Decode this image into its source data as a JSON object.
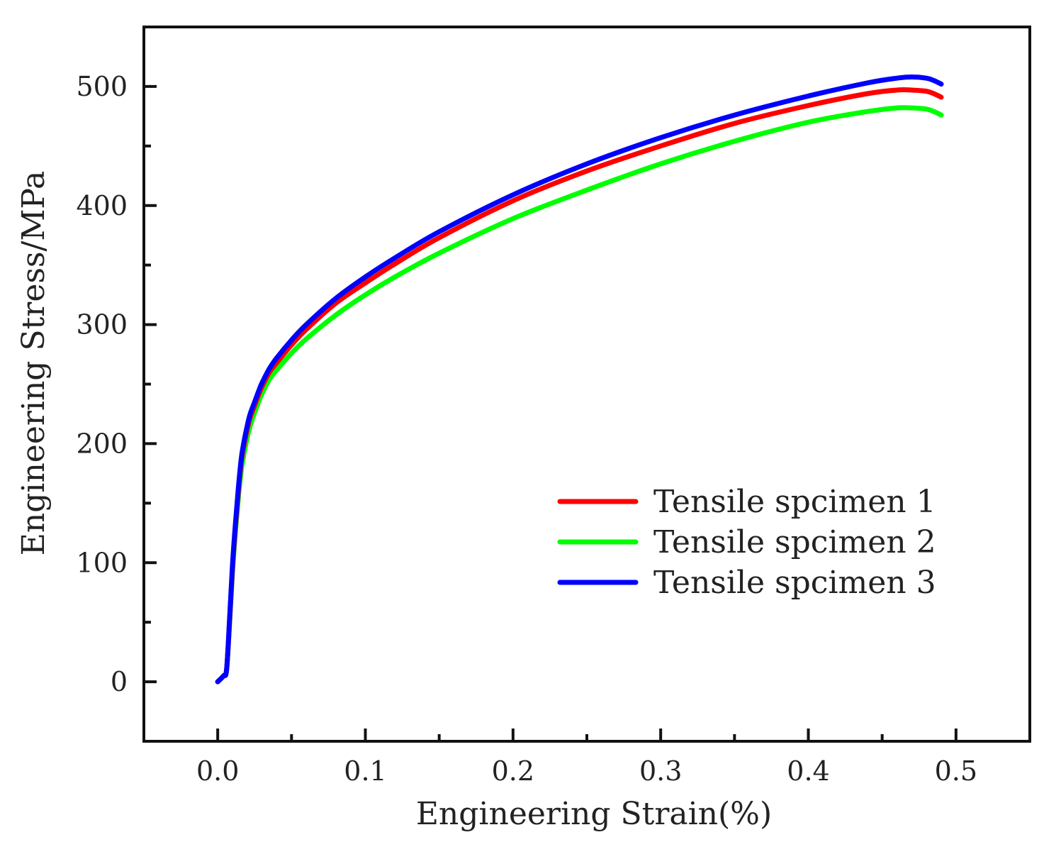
{
  "chart_data": {
    "type": "line",
    "title": "",
    "xlabel": "Engineering Strain(%)",
    "ylabel": "Engineering Stress/MPa",
    "xlim": [
      -0.05,
      0.55
    ],
    "ylim": [
      -50,
      550
    ],
    "xticks": [
      0.0,
      0.1,
      0.2,
      0.3,
      0.4,
      0.5
    ],
    "xtick_labels": [
      "0.0",
      "0.1",
      "0.2",
      "0.3",
      "0.4",
      "0.5"
    ],
    "yticks": [
      0,
      100,
      200,
      300,
      400,
      500
    ],
    "ytick_labels": [
      "0",
      "100",
      "200",
      "300",
      "400",
      "500"
    ],
    "grid": false,
    "legend_position": "bottom-right",
    "series": [
      {
        "name": "Tensile spcimen 1",
        "color": "#ff0000",
        "x": [
          0,
          0.004,
          0.006,
          0.008,
          0.01,
          0.012,
          0.014,
          0.016,
          0.018,
          0.02,
          0.022,
          0.025,
          0.028,
          0.03,
          0.035,
          0.04,
          0.05,
          0.06,
          0.08,
          0.1,
          0.12,
          0.15,
          0.2,
          0.25,
          0.3,
          0.35,
          0.4,
          0.44,
          0.46,
          0.47,
          0.48,
          0.485,
          0.49
        ],
        "y": [
          0,
          5,
          10,
          50,
          95,
          130,
          160,
          185,
          200,
          212,
          222,
          232,
          242,
          248,
          260,
          268,
          283,
          296,
          318,
          335,
          351,
          373,
          404,
          429,
          450,
          469,
          484,
          494,
          497,
          497,
          496,
          494,
          491
        ]
      },
      {
        "name": "Tensile spcimen 2",
        "color": "#00ff00",
        "x": [
          0,
          0.004,
          0.006,
          0.008,
          0.01,
          0.012,
          0.014,
          0.016,
          0.018,
          0.02,
          0.022,
          0.025,
          0.028,
          0.03,
          0.035,
          0.04,
          0.05,
          0.06,
          0.08,
          0.1,
          0.12,
          0.15,
          0.2,
          0.25,
          0.3,
          0.35,
          0.4,
          0.44,
          0.46,
          0.47,
          0.48,
          0.485,
          0.49
        ],
        "y": [
          0,
          5,
          10,
          48,
          92,
          126,
          155,
          178,
          193,
          205,
          215,
          226,
          236,
          242,
          254,
          262,
          276,
          288,
          308,
          325,
          340,
          360,
          389,
          413,
          435,
          454,
          470,
          479,
          482,
          482,
          481,
          479,
          476
        ]
      },
      {
        "name": "Tensile spcimen 3",
        "color": "#0000ff",
        "x": [
          0,
          0.004,
          0.006,
          0.008,
          0.01,
          0.012,
          0.014,
          0.016,
          0.018,
          0.02,
          0.022,
          0.025,
          0.028,
          0.03,
          0.035,
          0.04,
          0.05,
          0.06,
          0.08,
          0.1,
          0.12,
          0.15,
          0.2,
          0.25,
          0.3,
          0.35,
          0.4,
          0.44,
          0.46,
          0.47,
          0.48,
          0.485,
          0.49
        ],
        "y": [
          0,
          5,
          10,
          52,
          98,
          133,
          163,
          188,
          203,
          215,
          225,
          235,
          245,
          251,
          263,
          272,
          287,
          300,
          322,
          340,
          356,
          378,
          409,
          435,
          457,
          476,
          492,
          503,
          507,
          508,
          507,
          505,
          502
        ]
      }
    ]
  }
}
